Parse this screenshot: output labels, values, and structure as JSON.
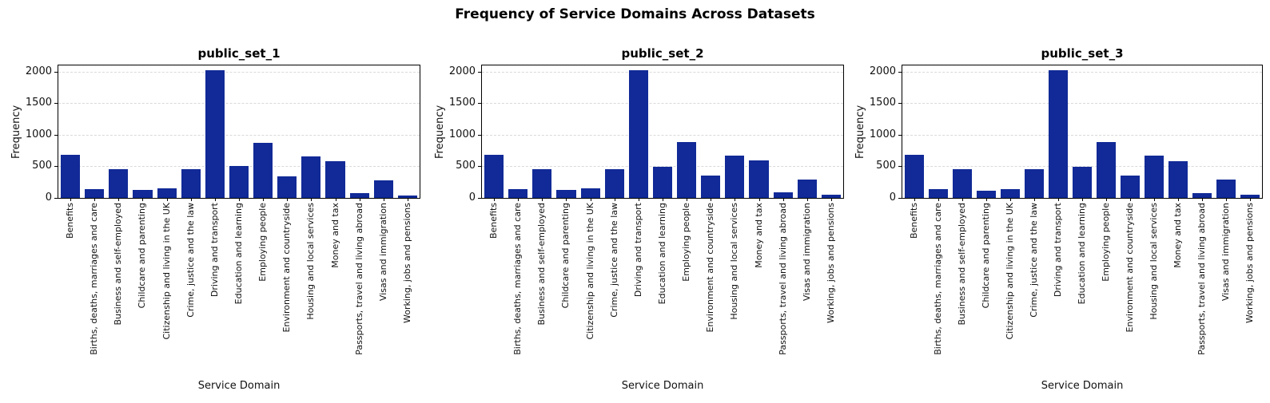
{
  "figure": {
    "title": "Frequency of Service Domains Across Datasets"
  },
  "axes": {
    "x_label": "Service Domain",
    "y_label": "Frequency",
    "y_ticks": [
      0,
      500,
      1000,
      1500,
      2000
    ],
    "y_max": 2100,
    "grid": "horizontal-dashed"
  },
  "colors": {
    "bar": "#112a97",
    "grid": "#d9d9d9",
    "spine": "#000000",
    "background": "#ffffff"
  },
  "chart_data": [
    {
      "type": "bar",
      "title": "public_set_1",
      "xlabel": "Service Domain",
      "ylabel": "Frequency",
      "ylim": [
        0,
        2100
      ],
      "yticks": [
        0,
        500,
        1000,
        1500,
        2000
      ],
      "legend": "none",
      "categories": [
        "Benefits",
        "Births, deaths, marriages and care",
        "Business and self-employed",
        "Childcare and parenting",
        "Citizenship and living in the UK",
        "Crime, justice and the law",
        "Driving and transport",
        "Education and learning",
        "Employing people",
        "Environment and countryside",
        "Housing and local services",
        "Money and tax",
        "Passports, travel and living abroad",
        "Visas and immigration",
        "Working, jobs and pensions"
      ],
      "values": [
        680,
        140,
        450,
        125,
        155,
        450,
        2020,
        500,
        875,
        345,
        660,
        585,
        70,
        280,
        40
      ]
    },
    {
      "type": "bar",
      "title": "public_set_2",
      "xlabel": "Service Domain",
      "ylabel": "Frequency",
      "ylim": [
        0,
        2100
      ],
      "yticks": [
        0,
        500,
        1000,
        1500,
        2000
      ],
      "legend": "none",
      "categories": [
        "Benefits",
        "Births, deaths, marriages and care",
        "Business and self-employed",
        "Childcare and parenting",
        "Citizenship and living in the UK",
        "Crime, justice and the law",
        "Driving and transport",
        "Education and learning",
        "Employing people",
        "Environment and countryside",
        "Housing and local services",
        "Money and tax",
        "Passports, travel and living abroad",
        "Visas and immigration",
        "Working, jobs and pensions"
      ],
      "values": [
        680,
        145,
        455,
        130,
        155,
        455,
        2025,
        495,
        880,
        350,
        665,
        590,
        85,
        285,
        45
      ]
    },
    {
      "type": "bar",
      "title": "public_set_3",
      "xlabel": "Service Domain",
      "ylabel": "Frequency",
      "ylim": [
        0,
        2100
      ],
      "yticks": [
        0,
        500,
        1000,
        1500,
        2000
      ],
      "legend": "none",
      "categories": [
        "Benefits",
        "Births, deaths, marriages and care",
        "Business and self-employed",
        "Childcare and parenting",
        "Citizenship and living in the UK",
        "Crime, justice and the law",
        "Driving and transport",
        "Education and learning",
        "Employing people",
        "Environment and countryside",
        "Housing and local services",
        "Money and tax",
        "Passports, travel and living abroad",
        "Visas and immigration",
        "Working, jobs and pensions"
      ],
      "values": [
        685,
        145,
        455,
        120,
        145,
        455,
        2025,
        495,
        885,
        350,
        670,
        580,
        70,
        285,
        45
      ]
    }
  ]
}
